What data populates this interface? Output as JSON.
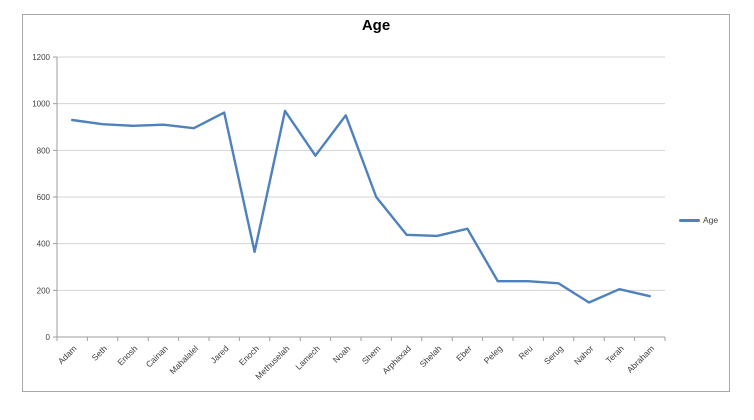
{
  "chart": {
    "title": "Age",
    "border_color": "#A7A7A7",
    "gridline_color": "#D3D3D3",
    "axis_color": "#9E9E9E",
    "tick_label_color": "#3F3F3F",
    "title_color": "#000000"
  },
  "legend": {
    "position": "right",
    "items": [
      {
        "label": "Age",
        "color": "#4F81BD"
      }
    ]
  },
  "chart_data": {
    "type": "line",
    "title": "Age",
    "categories": [
      "Adam",
      "Seth",
      "Enosh",
      "Cainan",
      "Mahalalel",
      "Jared",
      "Enoch",
      "Methuselah",
      "Lamech",
      "Noah",
      "Shem",
      "Arphaxad",
      "Shelah",
      "Eber",
      "Peleg",
      "Reu",
      "Serug",
      "Nahor",
      "Terah",
      "Abraham"
    ],
    "series": [
      {
        "name": "Age",
        "color": "#4F81BD",
        "values": [
          930,
          912,
          905,
          910,
          895,
          962,
          365,
          969,
          777,
          950,
          600,
          438,
          433,
          464,
          239,
          239,
          230,
          148,
          205,
          175
        ]
      }
    ],
    "xlabel": "",
    "ylabel": "",
    "ylim": [
      0,
      1200
    ],
    "ytick_step": 200,
    "grid": true,
    "legend_position": "right"
  }
}
